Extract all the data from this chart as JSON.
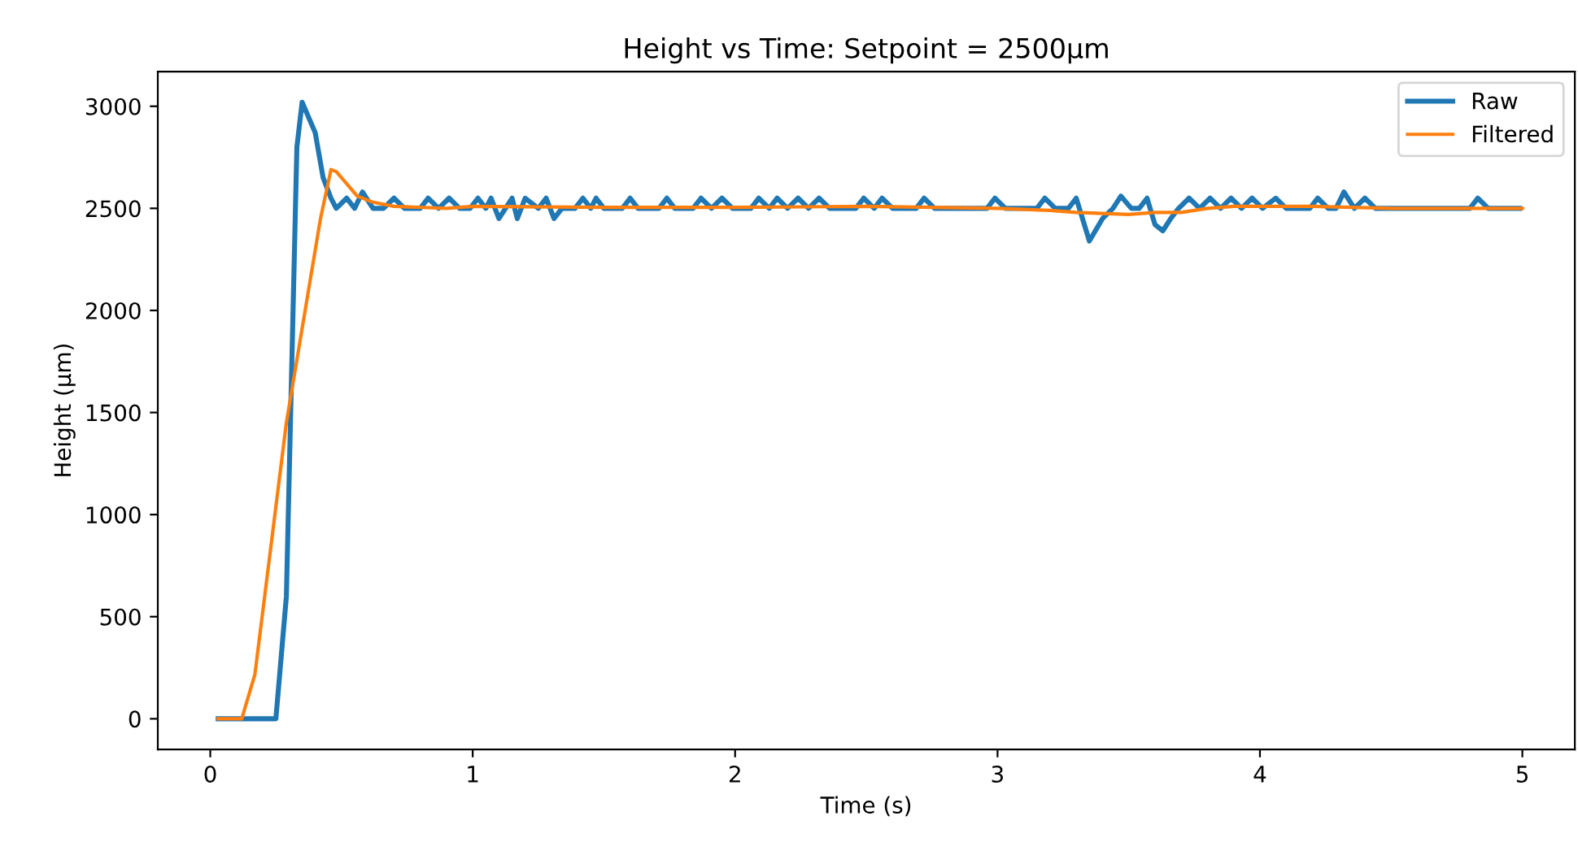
{
  "chart_data": {
    "type": "line",
    "title": "Height vs Time: Setpoint = 2500µm",
    "xlabel": "Time (s)",
    "ylabel": "Height (µm)",
    "xlim": [
      -0.2,
      5.2
    ],
    "xticks": [
      0,
      1,
      2,
      3,
      4,
      5
    ],
    "ylim": [
      -150,
      3170
    ],
    "yticks": [
      0,
      500,
      1000,
      1500,
      2000,
      2500,
      3000
    ],
    "grid": false,
    "legend": "top right",
    "series": [
      {
        "name": "Raw",
        "color": "#1f77b4",
        "x": [
          0.03,
          0.25,
          0.29,
          0.33,
          0.35,
          0.4,
          0.43,
          0.46,
          0.48,
          0.52,
          0.55,
          0.58,
          0.62,
          0.66,
          0.7,
          0.74,
          0.8,
          0.83,
          0.87,
          0.91,
          0.95,
          0.99,
          1.02,
          1.05,
          1.07,
          1.1,
          1.15,
          1.17,
          1.2,
          1.25,
          1.28,
          1.31,
          1.34,
          1.39,
          1.42,
          1.45,
          1.47,
          1.5,
          1.57,
          1.6,
          1.63,
          1.71,
          1.74,
          1.77,
          1.84,
          1.87,
          1.91,
          1.95,
          1.99,
          2.06,
          2.09,
          2.13,
          2.16,
          2.2,
          2.24,
          2.28,
          2.32,
          2.36,
          2.46,
          2.49,
          2.53,
          2.56,
          2.6,
          2.69,
          2.72,
          2.76,
          2.96,
          2.99,
          3.03,
          3.15,
          3.18,
          3.22,
          3.27,
          3.3,
          3.35,
          3.4,
          3.44,
          3.47,
          3.51,
          3.54,
          3.57,
          3.6,
          3.63,
          3.66,
          3.69,
          3.73,
          3.77,
          3.81,
          3.85,
          3.89,
          3.93,
          3.97,
          4.01,
          4.06,
          4.1,
          4.19,
          4.22,
          4.26,
          4.29,
          4.32,
          4.36,
          4.4,
          4.44,
          4.8,
          4.83,
          4.87,
          4.99
        ],
        "values": [
          0,
          0,
          600,
          2800,
          3020,
          2870,
          2650,
          2550,
          2500,
          2550,
          2500,
          2580,
          2500,
          2500,
          2550,
          2500,
          2500,
          2550,
          2500,
          2550,
          2500,
          2500,
          2550,
          2500,
          2550,
          2450,
          2550,
          2450,
          2550,
          2500,
          2550,
          2450,
          2500,
          2500,
          2550,
          2500,
          2550,
          2500,
          2500,
          2550,
          2500,
          2500,
          2550,
          2500,
          2500,
          2550,
          2500,
          2550,
          2500,
          2500,
          2550,
          2500,
          2550,
          2500,
          2550,
          2500,
          2550,
          2500,
          2500,
          2550,
          2500,
          2550,
          2500,
          2500,
          2550,
          2500,
          2500,
          2550,
          2500,
          2500,
          2550,
          2500,
          2500,
          2550,
          2340,
          2450,
          2500,
          2560,
          2500,
          2500,
          2550,
          2420,
          2390,
          2450,
          2500,
          2550,
          2500,
          2550,
          2500,
          2550,
          2500,
          2550,
          2500,
          2550,
          2500,
          2500,
          2550,
          2500,
          2500,
          2580,
          2500,
          2550,
          2500,
          2500,
          2550,
          2500,
          2500
        ]
      },
      {
        "name": "Filtered",
        "color": "#ff7f0e",
        "x": [
          0.03,
          0.12,
          0.17,
          0.29,
          0.42,
          0.46,
          0.48,
          0.52,
          0.56,
          0.62,
          0.7,
          0.9,
          1.0,
          1.5,
          2.0,
          2.5,
          3.0,
          3.2,
          3.3,
          3.5,
          3.6,
          3.7,
          3.8,
          3.9,
          4.2,
          4.5,
          5.0
        ],
        "values": [
          0,
          0,
          217,
          1450,
          2450,
          2690,
          2680,
          2620,
          2560,
          2530,
          2510,
          2500,
          2510,
          2505,
          2505,
          2510,
          2500,
          2490,
          2480,
          2470,
          2480,
          2480,
          2500,
          2510,
          2510,
          2500,
          2500
        ]
      }
    ]
  }
}
